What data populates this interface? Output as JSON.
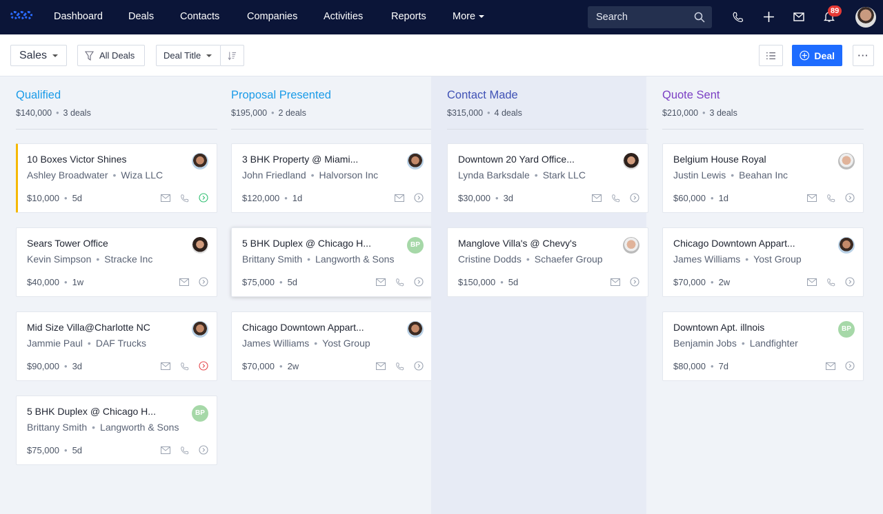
{
  "nav": {
    "items": [
      "Dashboard",
      "Deals",
      "Contacts",
      "Companies",
      "Activities",
      "Reports",
      "More"
    ],
    "search_placeholder": "Search",
    "notification_count": "89"
  },
  "toolbar": {
    "pipeline": "Sales",
    "filter": "All Deals",
    "sort": "Deal Title",
    "add_deal": "Deal"
  },
  "colors": {
    "nav_bg": "#0b1538",
    "primary": "#1e6cff",
    "flag": "#f5b800"
  },
  "columns": [
    {
      "title": "Qualified",
      "color": "#1a9be8",
      "amount": "$140,000",
      "count": "3 deals",
      "cards": [
        {
          "title": "10 Boxes Victor Shines",
          "contact": "Ashley Broadwater",
          "company": "Wiza LLC",
          "value": "$10,000",
          "age": "5d",
          "avatar": "p1",
          "phone": true,
          "status": "green",
          "flag": true
        },
        {
          "title": "Sears Tower Office",
          "contact": "Kevin Simpson",
          "company": "Stracke Inc",
          "value": "$40,000",
          "age": "1w",
          "avatar": "p2",
          "phone": false,
          "status": "grey"
        },
        {
          "title": "Mid Size Villa@Charlotte NC",
          "contact": "Jammie Paul",
          "company": "DAF Trucks",
          "value": "$90,000",
          "age": "3d",
          "avatar": "p1",
          "phone": true,
          "status": "red"
        },
        {
          "title": "5 BHK Duplex @ Chicago H...",
          "contact": "Brittany Smith",
          "company": "Langworth & Sons",
          "value": "$75,000",
          "age": "5d",
          "avatar": "BP",
          "phone": true,
          "status": "grey"
        }
      ]
    },
    {
      "title": "Proposal Presented",
      "color": "#1a9be8",
      "amount": "$195,000",
      "count": "2 deals",
      "cards": [
        {
          "title": "3 BHK Property @ Miami...",
          "contact": "John Friedland",
          "company": "Halvorson Inc",
          "value": "$120,000",
          "age": "1d",
          "avatar": "p1",
          "phone": false,
          "status": "grey"
        },
        {
          "title": "5 BHK Duplex @ Chicago H...",
          "contact": "Brittany Smith",
          "company": "Langworth & Sons",
          "value": "$75,000",
          "age": "5d",
          "avatar": "BP",
          "phone": true,
          "status": "grey",
          "hover": true
        },
        {
          "title": "Chicago Downtown Appart...",
          "contact": "James Williams",
          "company": "Yost Group",
          "value": "$70,000",
          "age": "2w",
          "avatar": "p1",
          "phone": true,
          "status": "grey"
        }
      ]
    },
    {
      "title": "Contact Made",
      "color": "#3f51b5",
      "amount": "$315,000",
      "count": "4 deals",
      "cards": [
        {
          "title": "Downtown 20 Yard Office...",
          "contact": "Lynda Barksdale",
          "company": "Stark LLC",
          "value": "$30,000",
          "age": "3d",
          "avatar": "p2",
          "phone": true,
          "status": "grey"
        },
        {
          "title": "Manglove Villa's @ Chevy's",
          "contact": "Cristine Dodds",
          "company": "Schaefer Group",
          "value": "$150,000",
          "age": "5d",
          "avatar": "p3",
          "phone": false,
          "status": "grey"
        }
      ]
    },
    {
      "title": "Quote Sent",
      "color": "#7b3fc4",
      "amount": "$210,000",
      "count": "3 deals",
      "cards": [
        {
          "title": "Belgium House Royal",
          "contact": "Justin Lewis",
          "company": "Beahan Inc",
          "value": "$60,000",
          "age": "1d",
          "avatar": "p3",
          "phone": true,
          "status": "grey"
        },
        {
          "title": "Chicago Downtown Appart...",
          "contact": "James Williams",
          "company": "Yost Group",
          "value": "$70,000",
          "age": "2w",
          "avatar": "p1",
          "phone": true,
          "status": "grey"
        },
        {
          "title": "Downtown Apt. illnois",
          "contact": "Benjamin Jobs",
          "company": "Landfighter",
          "value": "$80,000",
          "age": "7d",
          "avatar": "BP",
          "phone": false,
          "status": "grey"
        }
      ]
    }
  ]
}
